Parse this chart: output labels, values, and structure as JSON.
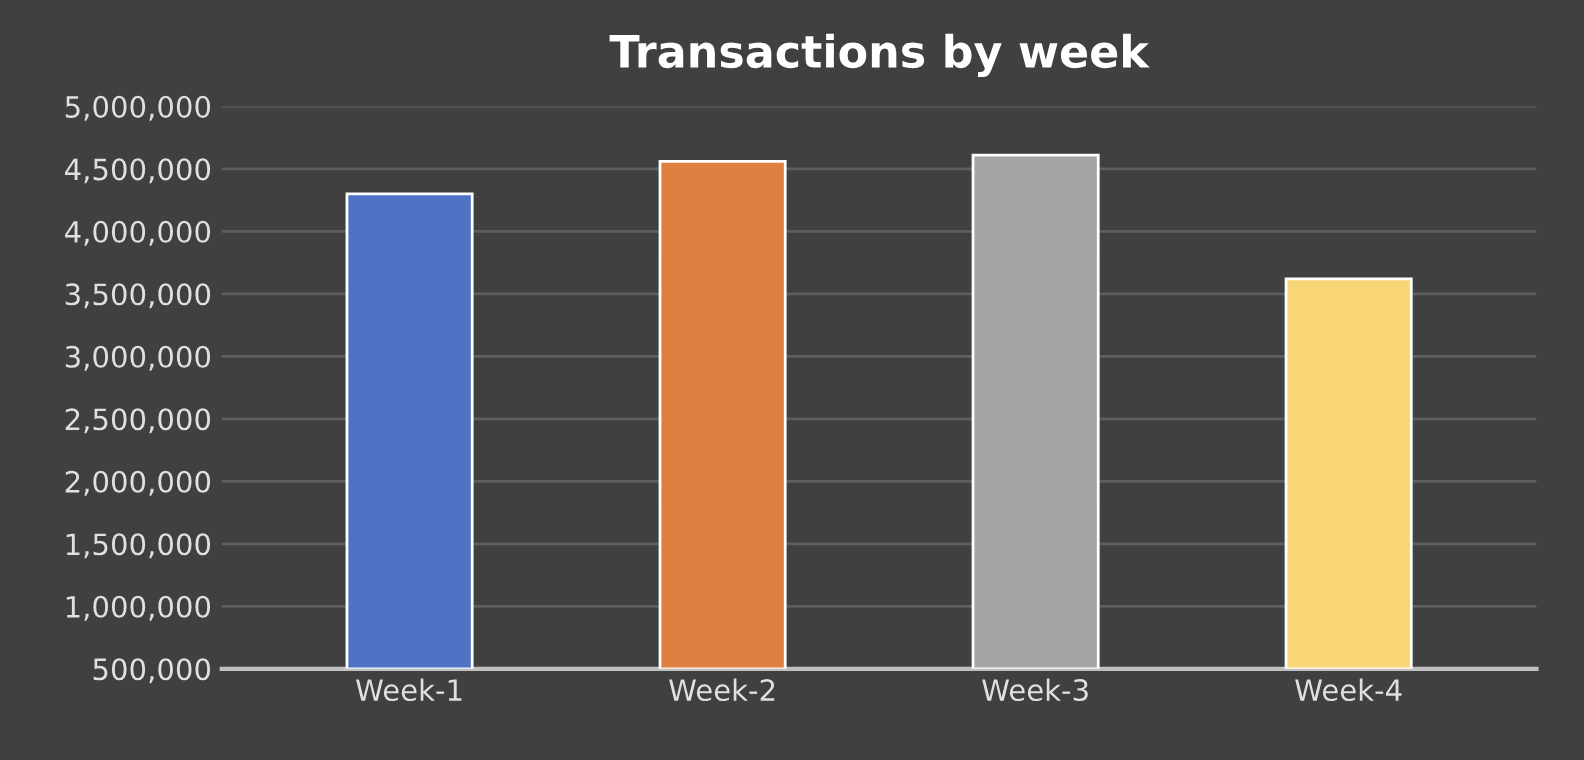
{
  "chart_data": {
    "type": "bar",
    "title": "Transactions by week",
    "categories": [
      "Week-1",
      "Week-2",
      "Week-3",
      "Week-4"
    ],
    "values": [
      4300000,
      4560000,
      4610000,
      3620000
    ],
    "colors": [
      "#4f72c4",
      "#e08040",
      "#a5a5a5",
      "#f8d676"
    ],
    "ylim": [
      500000,
      5000000
    ],
    "yticks": [
      {
        "value": 500000,
        "label": "500,000"
      },
      {
        "value": 1000000,
        "label": "1,000,000"
      },
      {
        "value": 1500000,
        "label": "1,500,000"
      },
      {
        "value": 2000000,
        "label": "2,000,000"
      },
      {
        "value": 2500000,
        "label": "2,500,000"
      },
      {
        "value": 3000000,
        "label": "3,000,000"
      },
      {
        "value": 3500000,
        "label": "3,500,000"
      },
      {
        "value": 4000000,
        "label": "4,000,000"
      },
      {
        "value": 4500000,
        "label": "4,500,000"
      },
      {
        "value": 5000000,
        "label": "5,000,000"
      }
    ],
    "grid": "y"
  }
}
